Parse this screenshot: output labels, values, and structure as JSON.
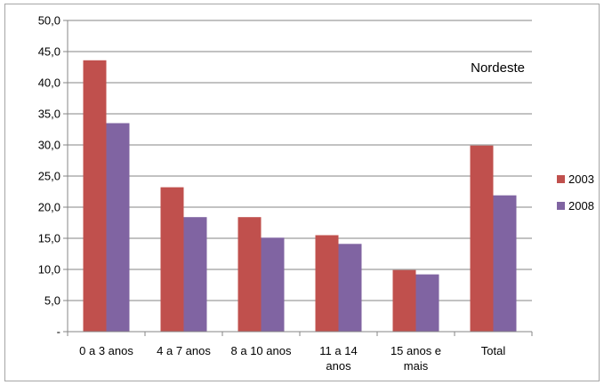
{
  "chart_data": {
    "type": "bar",
    "categories": [
      [
        "0 a 3 anos"
      ],
      [
        "4 a 7 anos"
      ],
      [
        "8 a 10 anos"
      ],
      [
        "11 a 14",
        "anos"
      ],
      [
        "15 anos e",
        "mais"
      ],
      [
        "Total"
      ]
    ],
    "series": [
      {
        "name": "2003",
        "values": [
          43.6,
          23.2,
          18.4,
          15.5,
          9.9,
          29.9
        ],
        "color": "#c0504d"
      },
      {
        "name": "2008",
        "values": [
          33.5,
          18.4,
          15.1,
          14.1,
          9.2,
          21.9
        ],
        "color": "#8064a2"
      }
    ],
    "ylim": [
      0,
      50
    ],
    "yticks": [
      "-",
      "5,0",
      "10,0",
      "15,0",
      "20,0",
      "25,0",
      "30,0",
      "35,0",
      "40,0",
      "45,0",
      "50,0"
    ],
    "annotation": "Nordeste",
    "grid": true,
    "legend_position": "right"
  }
}
